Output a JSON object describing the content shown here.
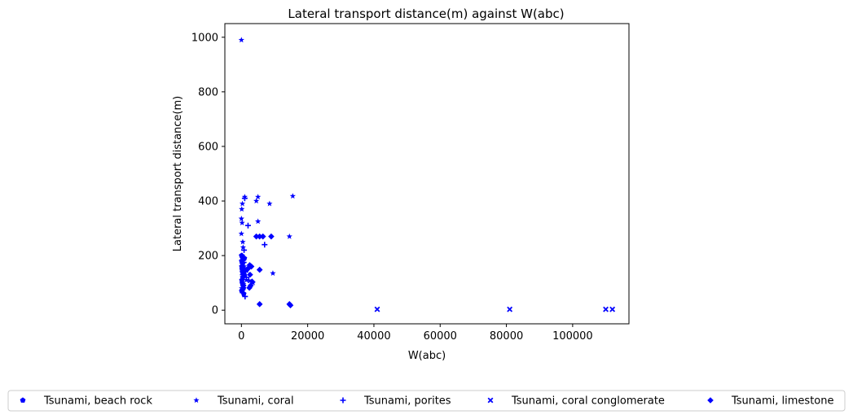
{
  "chart_data": {
    "type": "scatter",
    "title": "Lateral transport distance(m) against W(abc)",
    "xlabel": "W(abc)",
    "ylabel": "Lateral transport distance(m)",
    "xlim": [
      -5000,
      117000
    ],
    "ylim": [
      -50,
      1050
    ],
    "xticks": [
      0,
      20000,
      40000,
      60000,
      80000,
      100000
    ],
    "yticks": [
      0,
      200,
      400,
      600,
      800,
      1000
    ],
    "xtick_labels": [
      "0",
      "20000",
      "40000",
      "60000",
      "80000",
      "100000"
    ],
    "ytick_labels": [
      "0",
      "200",
      "400",
      "600",
      "800",
      "1000"
    ],
    "grid": false,
    "legend_position": "bottom",
    "marker_color": "#0000ff",
    "series": [
      {
        "name": "Tsunami, beach rock",
        "marker": "pentagon",
        "points": [
          [
            50,
            200
          ],
          [
            80,
            180
          ],
          [
            120,
            160
          ],
          [
            200,
            150
          ],
          [
            300,
            140
          ],
          [
            400,
            120
          ],
          [
            150,
            110
          ],
          [
            250,
            100
          ],
          [
            500,
            90
          ],
          [
            600,
            80
          ],
          [
            100,
            70
          ],
          [
            700,
            60
          ],
          [
            350,
            170
          ],
          [
            800,
            130
          ],
          [
            900,
            190
          ]
        ]
      },
      {
        "name": "Tsunami, coral",
        "marker": "star",
        "points": [
          [
            0,
            990
          ],
          [
            1000,
            415
          ],
          [
            15500,
            418
          ],
          [
            5000,
            415
          ],
          [
            4500,
            400
          ],
          [
            8500,
            390
          ],
          [
            300,
            390
          ],
          [
            100,
            370
          ],
          [
            0,
            335
          ],
          [
            200,
            320
          ],
          [
            5000,
            325
          ],
          [
            0,
            280
          ],
          [
            400,
            250
          ],
          [
            500,
            230
          ],
          [
            14500,
            270
          ],
          [
            9500,
            135
          ],
          [
            300,
            200
          ],
          [
            600,
            180
          ],
          [
            800,
            160
          ],
          [
            200,
            170
          ],
          [
            1500,
            110
          ],
          [
            3500,
            100
          ],
          [
            600,
            95
          ],
          [
            100,
            80
          ]
        ]
      },
      {
        "name": "Tsunami, porites",
        "marker": "plus",
        "points": [
          [
            1000,
            410
          ],
          [
            2000,
            310
          ],
          [
            7000,
            240
          ],
          [
            800,
            220
          ],
          [
            500,
            190
          ],
          [
            700,
            175
          ],
          [
            900,
            155
          ],
          [
            1200,
            140
          ],
          [
            400,
            130
          ],
          [
            1500,
            120
          ],
          [
            2200,
            110
          ],
          [
            600,
            90
          ],
          [
            300,
            75
          ],
          [
            1100,
            50
          ]
        ]
      },
      {
        "name": "Tsunami, coral conglomerate",
        "marker": "x",
        "points": [
          [
            41000,
            3
          ],
          [
            81000,
            3
          ],
          [
            110000,
            3
          ],
          [
            112000,
            3
          ]
        ]
      },
      {
        "name": "Tsunami, limestone",
        "marker": "diamond",
        "points": [
          [
            4500,
            270
          ],
          [
            5500,
            270
          ],
          [
            6500,
            270
          ],
          [
            9000,
            270
          ],
          [
            5500,
            148
          ],
          [
            2500,
            165
          ],
          [
            3000,
            160
          ],
          [
            2200,
            155
          ],
          [
            1800,
            150
          ],
          [
            2600,
            130
          ],
          [
            3200,
            105
          ],
          [
            2800,
            90
          ],
          [
            2400,
            82
          ],
          [
            5500,
            22
          ],
          [
            14500,
            22
          ],
          [
            14800,
            18
          ]
        ]
      }
    ]
  }
}
